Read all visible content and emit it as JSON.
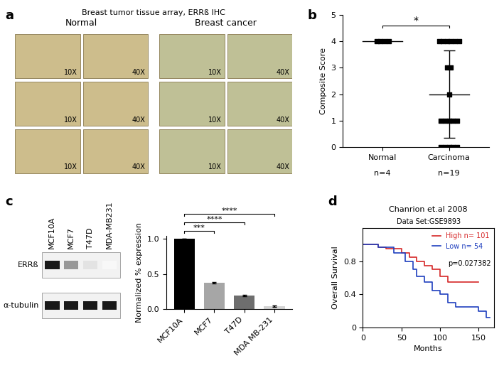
{
  "chart_data": [
    {
      "type": "image_grid",
      "panel": "a",
      "title": "Breast tumor tissue array, ERRß IHC",
      "groups": [
        "Normal",
        "Breast cancer"
      ],
      "magnifications": [
        "10X",
        "40X"
      ],
      "rows": 3
    },
    {
      "type": "scatter",
      "panel": "b",
      "categories": [
        "Normal",
        "Carcinoma"
      ],
      "group_sizes": [
        "n=4",
        "n=19"
      ],
      "values": [
        [
          4,
          4,
          4,
          4
        ],
        [
          4,
          4,
          4,
          4,
          4,
          4,
          3,
          3,
          2,
          1,
          1,
          1,
          1,
          1,
          0,
          0,
          0,
          0,
          0
        ]
      ],
      "mean": [
        4,
        2
      ],
      "error": [
        0,
        1.65
      ],
      "ylabel": "Composite Score",
      "ylim": [
        0,
        5
      ],
      "yticks": [
        0,
        1,
        2,
        3,
        4,
        5
      ],
      "marker": "square",
      "color": "#000000",
      "annotations": [
        "*"
      ]
    },
    {
      "type": "blot",
      "panel": "c",
      "lanes": [
        "MCF10A",
        "MCF7",
        "T47D",
        "MDA-MB231"
      ],
      "rows": [
        {
          "name": "ERRß",
          "band_intensity": [
            1.0,
            0.45,
            0.12,
            0.03
          ]
        },
        {
          "name": "α-tubulin",
          "band_intensity": [
            1.0,
            1.0,
            1.0,
            1.0
          ]
        }
      ]
    },
    {
      "type": "bar",
      "categories": [
        "MCF10A",
        "MCF7",
        "T47D",
        "MDA MB-231"
      ],
      "values": [
        1.0,
        0.38,
        0.19,
        0.04
      ],
      "error": [
        0,
        0.01,
        0.01,
        0.01
      ],
      "colors": [
        "#000000",
        "#a6a6a6",
        "#6e6e6e",
        "#d4d4d4"
      ],
      "ylabel": "Normalized % expression",
      "ylim": [
        0,
        1.05
      ],
      "yticks": [
        {
          "value": 0,
          "label": "0.0"
        },
        {
          "value": 0.5,
          "label": "0.5"
        },
        {
          "value": 1.0,
          "label": "1.0"
        }
      ],
      "comparisons": [
        {
          "from": "MCF10A",
          "to": "MCF7",
          "label": "***"
        },
        {
          "from": "MCF10A",
          "to": "T47D",
          "label": "****"
        },
        {
          "from": "MCF10A",
          "to": "MDA MB-231",
          "label": "****"
        }
      ]
    },
    {
      "type": "line",
      "panel": "d",
      "title": "Chanrion et.al 2008",
      "subtitle": "Data Set:GSE9893",
      "annotations": [
        "p=0.027382"
      ],
      "xlabel": "Months",
      "ylabel": "Overall Survival",
      "xlim": [
        0,
        170
      ],
      "ylim": [
        0,
        1.2
      ],
      "xticks": [
        0,
        50,
        100,
        150
      ],
      "yticks": [
        0,
        0.4,
        0.8
      ],
      "line_style": "steps",
      "legend": "upper right",
      "series": [
        {
          "name": "High n= 101",
          "color": "#d62728",
          "x": [
            0,
            20,
            30,
            50,
            60,
            70,
            80,
            90,
            100,
            110,
            150
          ],
          "values": [
            1.0,
            0.97,
            0.95,
            0.9,
            0.85,
            0.8,
            0.75,
            0.7,
            0.62,
            0.55,
            0.55
          ]
        },
        {
          "name": "Low n= 54",
          "color": "#1f3fbf",
          "x": [
            0,
            20,
            40,
            55,
            65,
            70,
            80,
            90,
            100,
            110,
            120,
            150,
            160,
            165
          ],
          "values": [
            1.0,
            0.97,
            0.9,
            0.8,
            0.7,
            0.62,
            0.55,
            0.45,
            0.4,
            0.3,
            0.25,
            0.2,
            0.12,
            0.12
          ]
        }
      ]
    }
  ]
}
